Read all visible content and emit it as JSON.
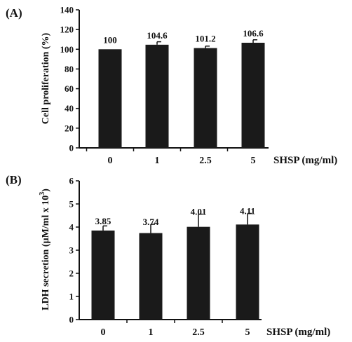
{
  "chart_data": [
    {
      "type": "bar",
      "panel_label": "(A)",
      "categories": [
        "0",
        "1",
        "2.5",
        "5"
      ],
      "values": [
        100,
        104.6,
        101.2,
        106.6
      ],
      "error": [
        0,
        3,
        2,
        3
      ],
      "data_labels": [
        "100",
        "104.6",
        "101.2",
        "106.6"
      ],
      "xlabel": "SHSP (mg/ml)",
      "ylabel": "Cell proliferation (%)",
      "ylim": [
        0,
        140
      ],
      "yticks": [
        0,
        20,
        40,
        60,
        80,
        100,
        120,
        140
      ],
      "ytick_labels": [
        "0",
        "20",
        "40",
        "60",
        "80",
        "100",
        "120",
        "140"
      ],
      "grid": false,
      "bar_color": "#1a1a1a"
    },
    {
      "type": "bar",
      "panel_label": "(B)",
      "categories": [
        "0",
        "1",
        "2.5",
        "5"
      ],
      "values": [
        3.85,
        3.74,
        4.01,
        4.11
      ],
      "error": [
        0.2,
        0.38,
        0.55,
        0.48
      ],
      "data_labels": [
        "3.85",
        "3.74",
        "4.01",
        "4.11"
      ],
      "xlabel": "SHSP (mg/ml)",
      "ylabel_main": "LDH secretion (µM/ml x 10",
      "ylabel_sup": "3",
      "ylabel_end": ")",
      "ylim": [
        0,
        6
      ],
      "yticks": [
        0,
        1,
        2,
        3,
        4,
        5,
        6
      ],
      "ytick_labels": [
        "0",
        "1",
        "2",
        "3",
        "4",
        "5",
        "6"
      ],
      "grid": false,
      "bar_color": "#1a1a1a"
    }
  ]
}
